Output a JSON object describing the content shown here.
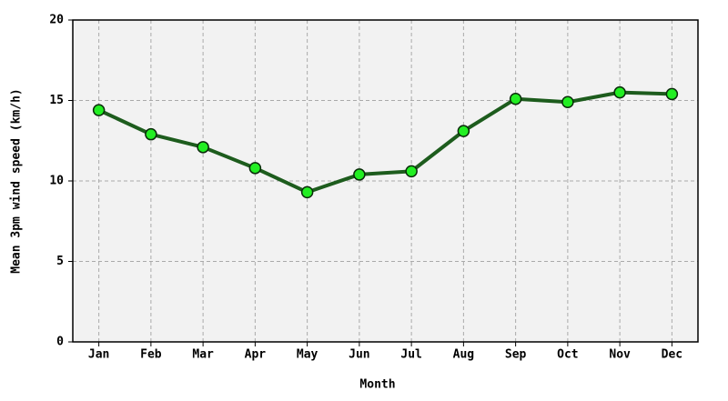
{
  "chart_data": {
    "type": "line",
    "x_label": "Month",
    "y_label": "Mean 3pm wind speed (km/h)",
    "categories": [
      "Jan",
      "Feb",
      "Mar",
      "Apr",
      "May",
      "Jun",
      "Jul",
      "Aug",
      "Sep",
      "Oct",
      "Nov",
      "Dec"
    ],
    "series": [
      {
        "name": "Mean 3pm wind speed",
        "color": "#1d5c1d",
        "marker_color": "#22ee22",
        "values": [
          14.4,
          12.9,
          12.1,
          10.8,
          9.3,
          10.4,
          10.6,
          13.1,
          15.1,
          14.9,
          15.5,
          15.4
        ]
      }
    ],
    "ylim": [
      0,
      20
    ],
    "yticks": [
      0,
      5,
      10,
      15,
      20
    ],
    "grid": true
  }
}
